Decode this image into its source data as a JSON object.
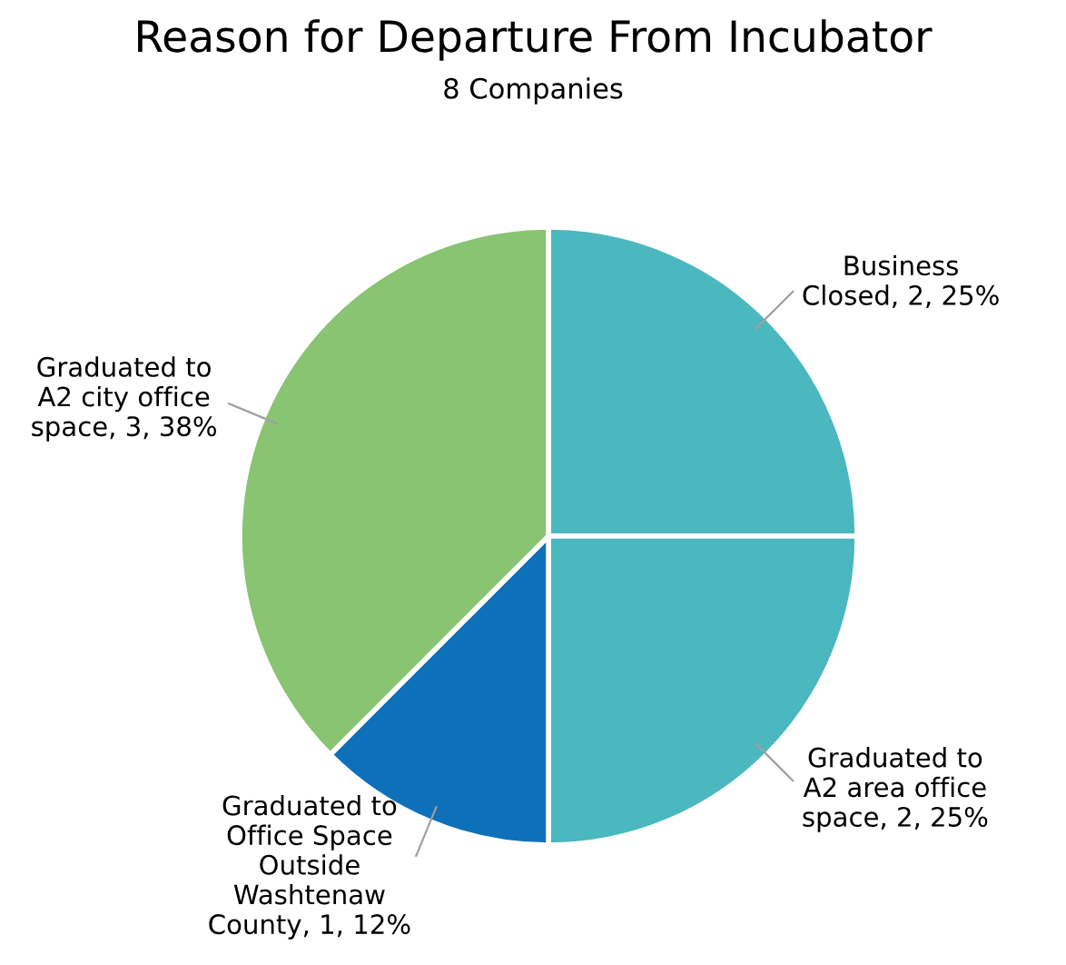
{
  "chart_data": {
    "type": "pie",
    "title": "Reason for Departure From Incubator",
    "subtitle": "8 Companies",
    "categories": [
      "Business Closed",
      "Graduated to A2 area office space",
      "Graduated to Office Space Outside Washtenaw County",
      "Graduated to A2 city office space"
    ],
    "values": [
      2,
      2,
      1,
      3
    ],
    "colors": [
      "#4bb7be",
      "#4bb7be",
      "#0f70ba",
      "#88c472"
    ],
    "value_labels": [
      "2, 25%",
      "2, 25%",
      "1, 12%",
      "3, 38%"
    ]
  }
}
